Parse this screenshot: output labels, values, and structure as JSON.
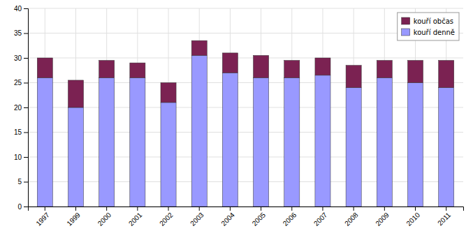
{
  "chart_data": {
    "type": "bar",
    "stacked": true,
    "categories": [
      "1997",
      "1999",
      "2000",
      "2001",
      "2002",
      "2003",
      "2004",
      "2005",
      "2006",
      "2007",
      "2008",
      "2009",
      "2010",
      "2011"
    ],
    "series": [
      {
        "name": "kouří denně",
        "color": "#9999ff",
        "values": [
          26,
          20,
          26,
          26,
          21,
          30.5,
          27,
          26,
          26,
          26.5,
          24,
          26,
          25,
          24
        ]
      },
      {
        "name": "kouří občas",
        "color": "#7B2252",
        "values": [
          4,
          5.5,
          3.5,
          3,
          4,
          3,
          4,
          4.5,
          3.5,
          3.5,
          4.5,
          3.5,
          4.5,
          5.5
        ]
      }
    ],
    "ylim": [
      0,
      40
    ],
    "yticks": [
      0,
      5,
      10,
      15,
      20,
      25,
      30,
      35,
      40
    ],
    "grid": true,
    "legend": "upper right"
  }
}
